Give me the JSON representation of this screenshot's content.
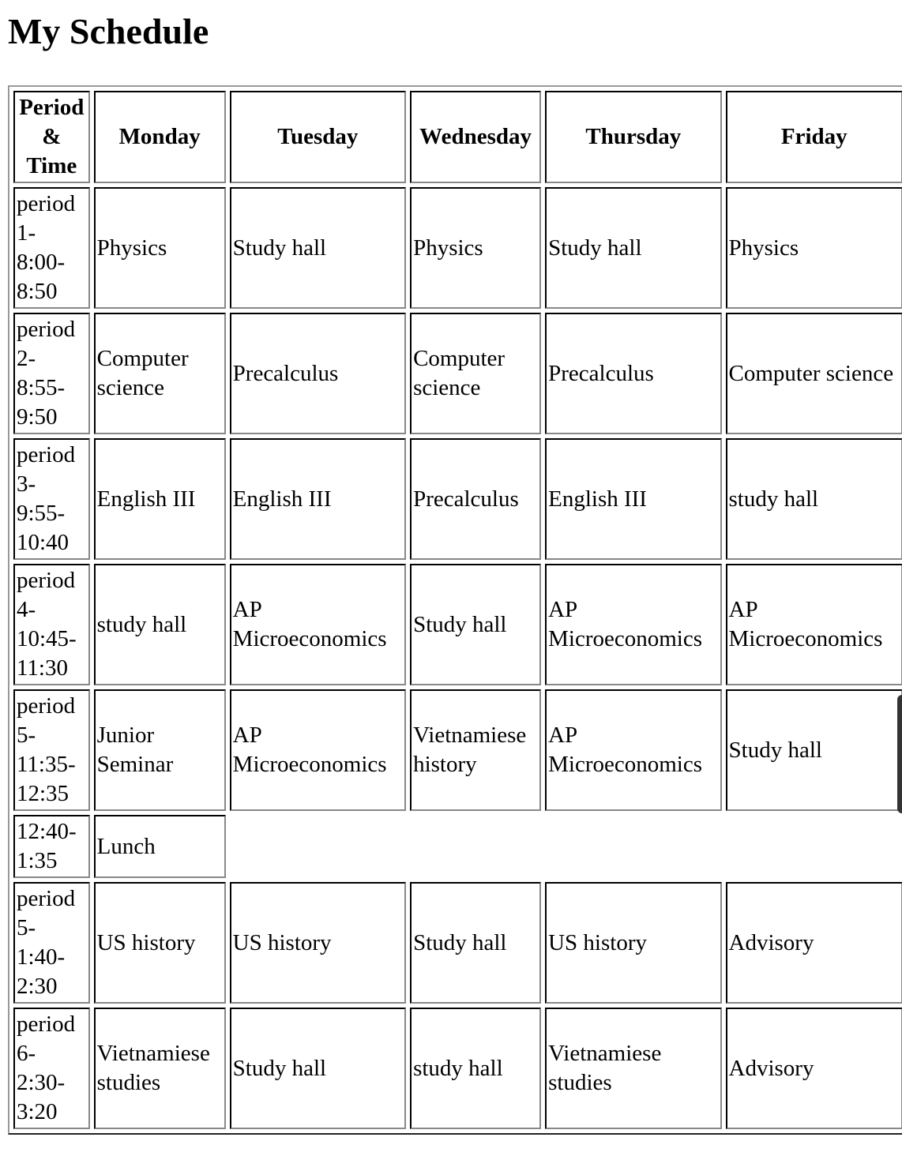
{
  "title": "My Schedule",
  "headers": [
    "Period & Time",
    "Monday",
    "Tuesday",
    "Wednesday",
    "Thursday",
    "Friday"
  ],
  "rows": [
    [
      "period 1- 8:00- 8:50",
      "Physics",
      "Study hall",
      "Physics",
      "Study hall",
      "Physics"
    ],
    [
      "period 2- 8:55- 9:50",
      "Computer science",
      "Precalculus",
      "Computer science",
      "Precalculus",
      "Computer science"
    ],
    [
      "period 3- 9:55- 10:40",
      "English III",
      "English III",
      "Precalculus",
      "English III",
      "study hall"
    ],
    [
      "period 4- 10:45- 11:30",
      "study hall",
      "AP Microeconomics",
      "Study hall",
      "AP Microeconomics",
      "AP Microeconomics"
    ],
    [
      "period 5- 11:35- 12:35",
      "Junior Seminar",
      "AP Microeconomics",
      "Vietnamiese history",
      "AP Microeconomics",
      "Study hall"
    ],
    [
      "12:40- 1:35",
      "Lunch"
    ],
    [
      "period 5- 1:40- 2:30",
      "US history",
      "US history",
      "Study hall",
      "US history",
      "Advisory"
    ],
    [
      "period 6- 2:30- 3:20",
      "Vietnamiese studies",
      "Study hall",
      "study hall",
      "Vietnamiese studies",
      "Advisory"
    ]
  ]
}
